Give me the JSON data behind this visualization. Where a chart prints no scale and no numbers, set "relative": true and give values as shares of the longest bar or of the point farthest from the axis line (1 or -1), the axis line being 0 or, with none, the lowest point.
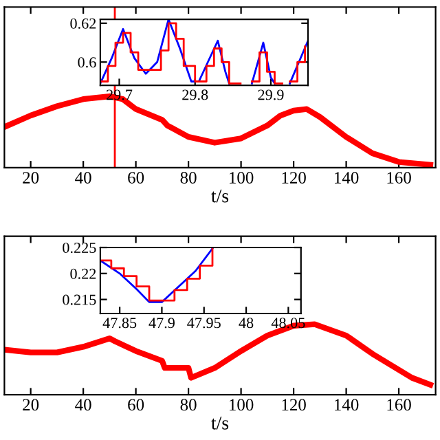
{
  "chart_data": [
    {
      "type": "line",
      "relative": true,
      "xlabel": "t/s",
      "xlim": [
        10,
        174
      ],
      "xticks": [
        20,
        40,
        60,
        80,
        100,
        120,
        140,
        160
      ],
      "tick_labels": "x",
      "grid": false,
      "x": [
        10,
        20,
        30,
        40,
        50,
        55,
        60,
        70,
        72,
        80,
        90,
        100,
        110,
        115,
        120,
        125,
        130,
        140,
        150,
        160,
        172
      ],
      "series": [
        {
          "color": "#ff0000",
          "values": [
            0.57,
            0.73,
            0.86,
            0.96,
            1,
            0.96,
            0.82,
            0.67,
            0.59,
            0.43,
            0.35,
            0.41,
            0.59,
            0.73,
            0.8,
            0.82,
            0.71,
            0.43,
            0.2,
            0.08,
            0.04
          ]
        }
      ],
      "ref_lines": [
        {
          "axis": "x",
          "value": 52,
          "color": "#ff0000"
        }
      ]
    },
    {
      "type": "line",
      "xlim": [
        29.675,
        29.949
      ],
      "ylim": [
        0.588,
        0.622
      ],
      "xticks": [
        29.7,
        29.8,
        29.9
      ],
      "yticks": [
        0.6,
        0.62
      ],
      "grid": false,
      "series": [
        {
          "color": "#0000ff",
          "x": [
            29.675,
            29.69,
            29.705,
            29.72,
            29.735,
            29.75,
            29.765,
            29.78,
            29.795,
            29.805,
            29.83,
            29.84,
            29.845,
            29.86,
            29.875,
            29.89,
            29.9,
            29.905,
            29.915,
            29.925,
            29.949
          ],
          "values": [
            0.589,
            0.602,
            0.617,
            0.602,
            0.594,
            0.6,
            0.622,
            0.607,
            0.59,
            0.59,
            0.611,
            0.595,
            0.589,
            null,
            0.589,
            0.61,
            0.592,
            0.589,
            null,
            0.589,
            0.611
          ]
        },
        {
          "type": "step",
          "color": "#ff0000",
          "x": [
            29.675,
            29.685,
            29.695,
            29.705,
            29.715,
            29.725,
            29.74,
            29.755,
            29.765,
            29.775,
            29.785,
            29.8,
            29.815,
            29.825,
            29.835,
            29.845,
            29.86,
            29.875,
            29.885,
            29.895,
            29.905,
            29.915,
            29.925,
            29.935,
            29.945
          ],
          "values": [
            0.59,
            0.598,
            0.61,
            0.615,
            0.605,
            0.596,
            0.596,
            0.606,
            0.62,
            0.612,
            0.598,
            0.59,
            0.598,
            0.607,
            0.6,
            0.589,
            null,
            0.59,
            0.605,
            0.595,
            0.589,
            null,
            0.59,
            0.6,
            0.608
          ]
        }
      ]
    },
    {
      "type": "line",
      "relative": true,
      "xlabel": "t/s",
      "xlim": [
        10,
        174
      ],
      "xticks": [
        20,
        40,
        60,
        80,
        100,
        120,
        140,
        160
      ],
      "tick_labels": "x",
      "grid": false,
      "x": [
        10,
        20,
        30,
        40,
        50,
        52,
        60,
        70,
        71,
        72,
        80,
        81,
        90,
        100,
        110,
        120,
        128,
        140,
        150,
        165,
        172
      ],
      "series": [
        {
          "color": "#ff0000",
          "values": [
            0.64,
            0.6,
            0.6,
            0.68,
            0.8,
            0.76,
            0.62,
            0.48,
            0.38,
            0.38,
            0.38,
            0.24,
            0.38,
            0.62,
            0.84,
            0.98,
            1,
            0.84,
            0.58,
            0.24,
            0.14
          ]
        }
      ]
    },
    {
      "type": "line",
      "xlim": [
        47.827,
        48.065
      ],
      "ylim": [
        0.2123,
        0.225
      ],
      "xticks": [
        47.85,
        47.9,
        47.95,
        48,
        48.05
      ],
      "yticks": [
        0.215,
        0.22,
        0.225
      ],
      "grid": false,
      "series": [
        {
          "color": "#0000ff",
          "x": [
            47.827,
            47.85,
            47.87,
            47.885,
            47.9,
            47.92,
            47.94,
            47.96
          ],
          "values": [
            0.2225,
            0.22,
            0.217,
            0.2145,
            0.2145,
            0.2175,
            0.2205,
            0.2248
          ]
        },
        {
          "type": "step",
          "color": "#ff0000",
          "x": [
            47.827,
            47.84,
            47.855,
            47.87,
            47.885,
            47.9,
            47.915,
            47.93,
            47.945,
            47.96
          ],
          "values": [
            0.2225,
            0.221,
            0.2195,
            0.2175,
            0.2148,
            0.2148,
            0.2168,
            0.219,
            0.2215,
            0.2248
          ]
        }
      ]
    }
  ]
}
